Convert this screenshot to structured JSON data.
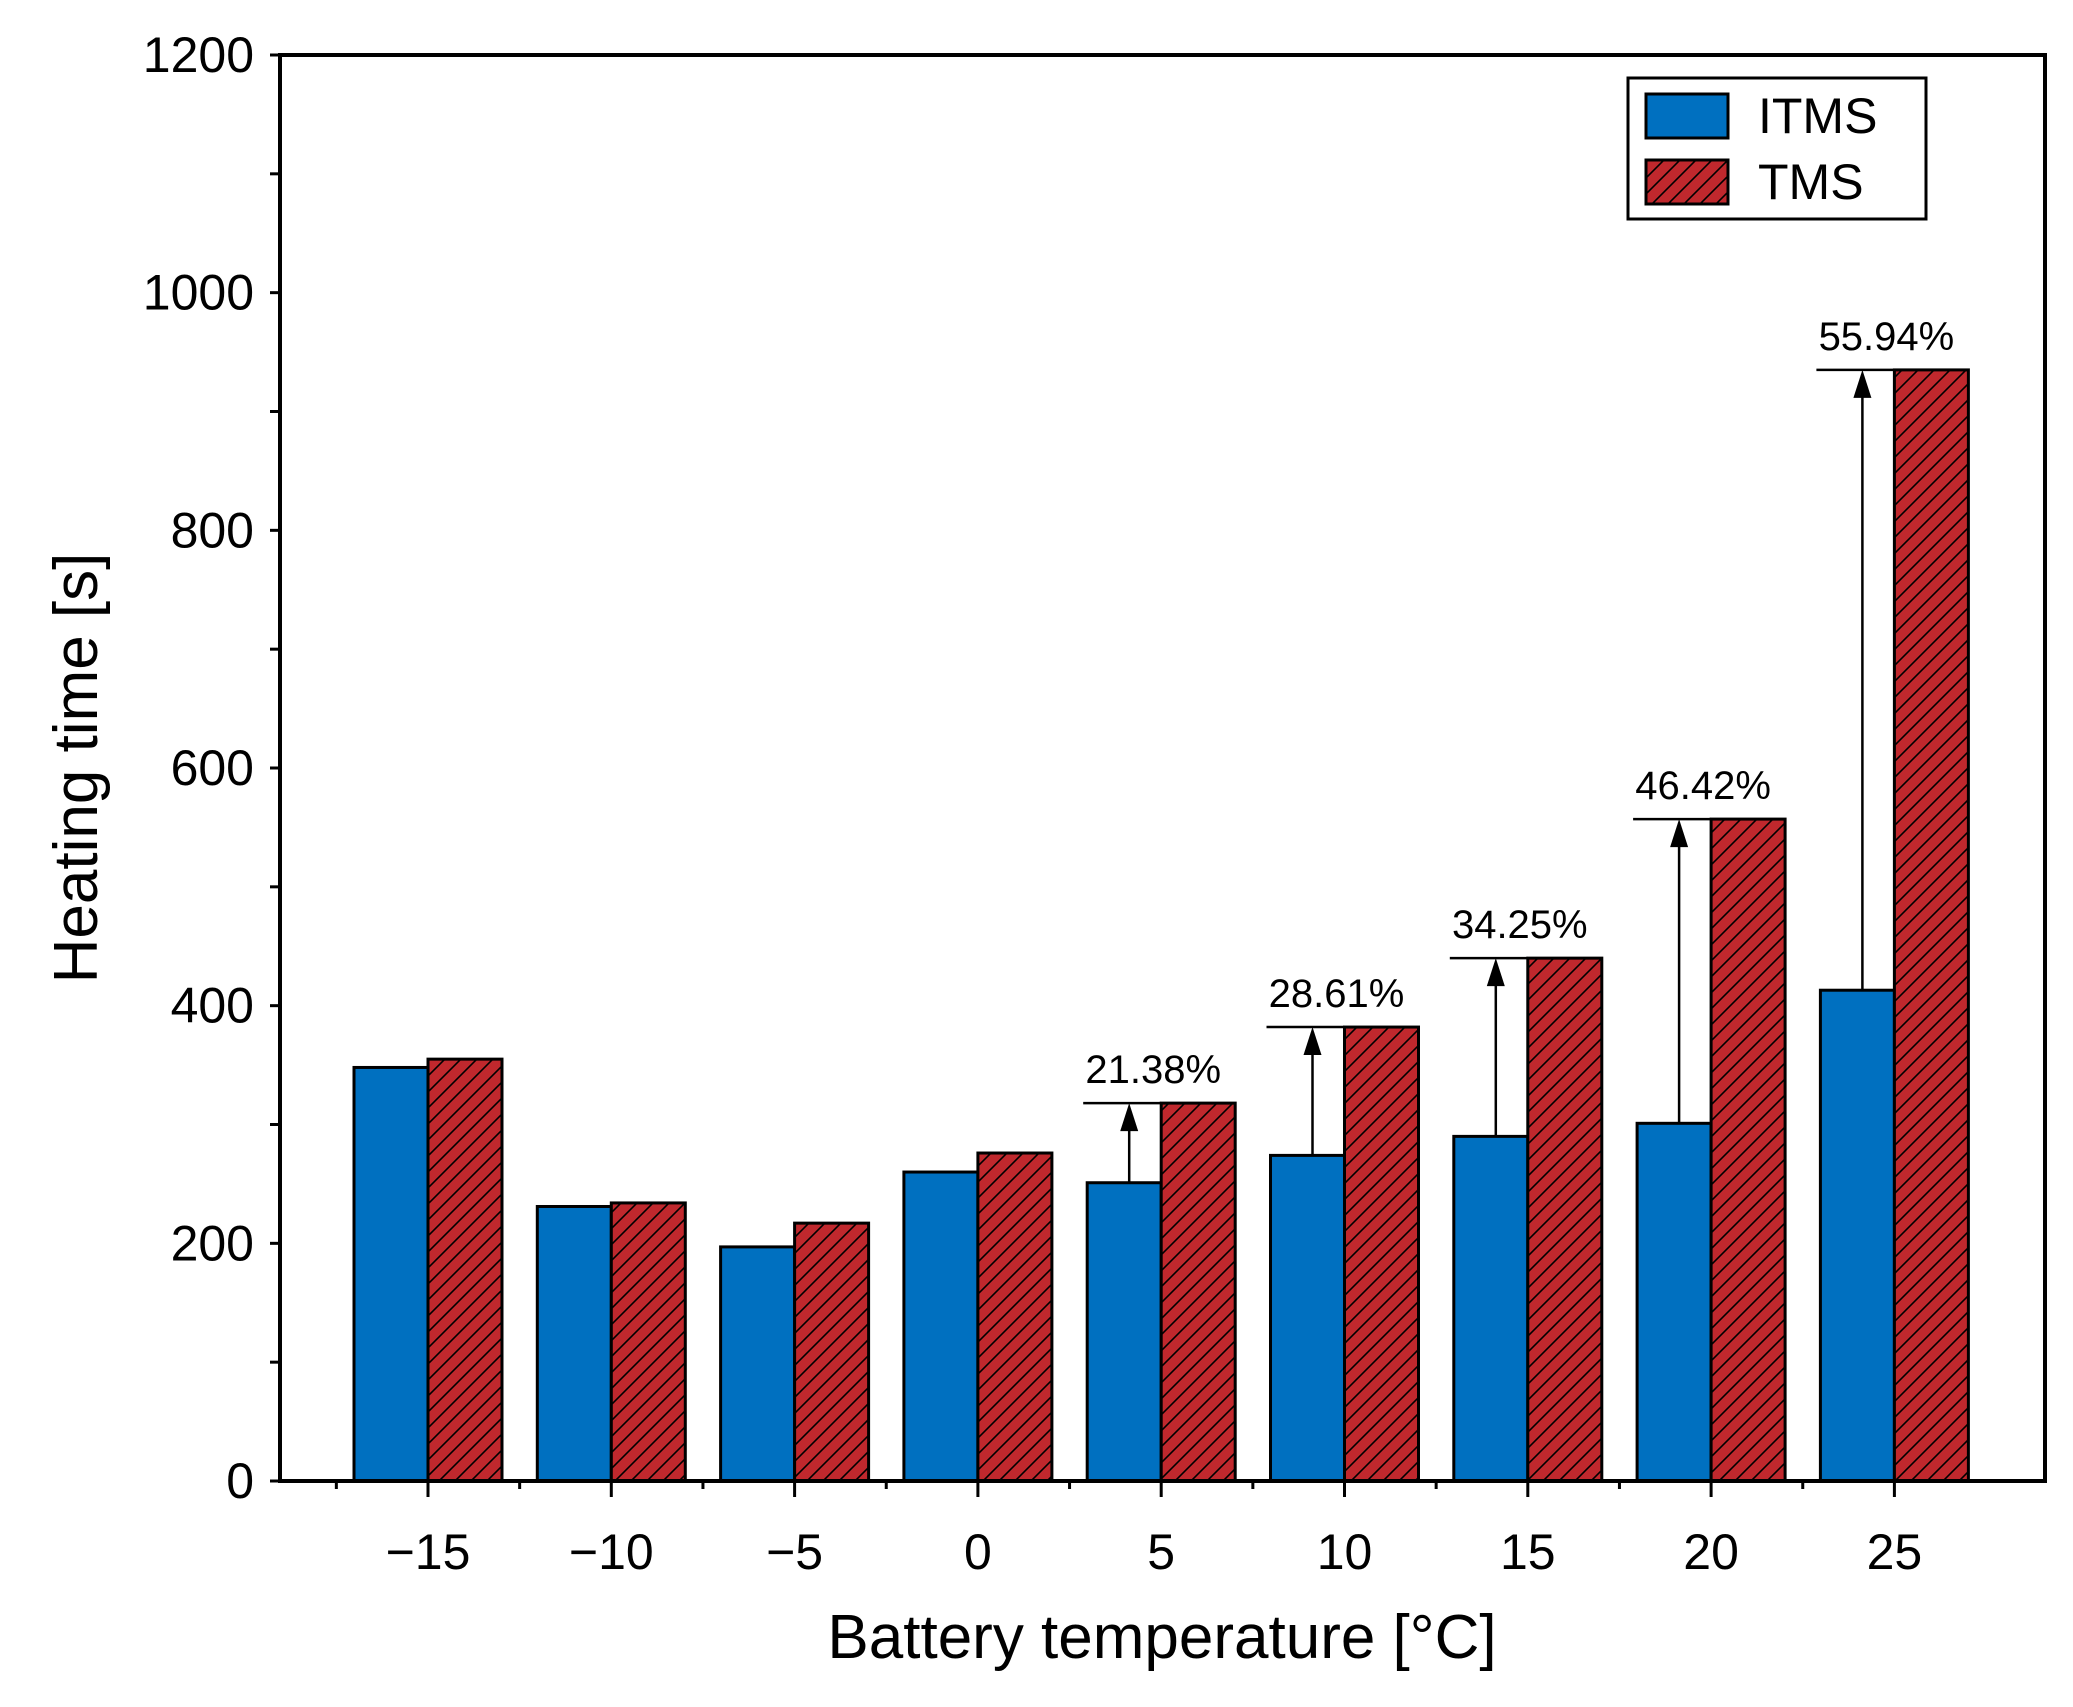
{
  "chart_data": {
    "type": "bar",
    "title": "",
    "xlabel": "Battery temperature [°C]",
    "ylabel": "Heating time [s]",
    "categories": [
      "−15",
      "−10",
      "−5",
      "0",
      "5",
      "10",
      "15",
      "20",
      "25"
    ],
    "series": [
      {
        "name": "ITMS",
        "color": "#0070C0",
        "pattern": "solid",
        "values": [
          348,
          231,
          197,
          260,
          251,
          274,
          290,
          301,
          413
        ]
      },
      {
        "name": "TMS",
        "color": "#C0282D",
        "pattern": "hatched",
        "values": [
          355,
          234,
          217,
          276,
          318,
          382,
          440,
          557,
          935
        ]
      }
    ],
    "ylim": [
      0,
      1200
    ],
    "yticks": [
      "0",
      "200",
      "400",
      "600",
      "800",
      "1000",
      "1200"
    ],
    "legend_position": "top-right",
    "annotations": [
      {
        "category": "5",
        "text": "21.38%"
      },
      {
        "category": "10",
        "text": "28.61%"
      },
      {
        "category": "15",
        "text": "34.25%"
      },
      {
        "category": "20",
        "text": "46.42%"
      },
      {
        "category": "25",
        "text": "55.94%"
      }
    ]
  }
}
